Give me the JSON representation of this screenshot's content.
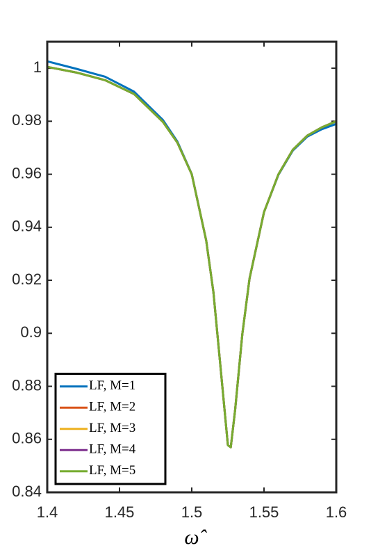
{
  "chart_data": {
    "type": "line",
    "x": [
      1.4,
      1.42,
      1.44,
      1.46,
      1.48,
      1.49,
      1.5,
      1.51,
      1.515,
      1.52,
      1.525,
      1.527,
      1.53,
      1.535,
      1.54,
      1.55,
      1.56,
      1.57,
      1.58,
      1.59,
      1.6
    ],
    "series": [
      {
        "name": "LF, M=1",
        "color": "#0072BD",
        "values": [
          1.0026,
          0.9998,
          0.9968,
          0.9912,
          0.9805,
          0.9724,
          0.9601,
          0.935,
          0.9155,
          0.8867,
          0.8578,
          0.857,
          0.871,
          0.8997,
          0.9207,
          0.9457,
          0.9598,
          0.969,
          0.9742,
          0.977,
          0.979
        ]
      },
      {
        "name": "LF, M=2",
        "color": "#D95319",
        "values": [
          1.0005,
          0.9984,
          0.9955,
          0.9903,
          0.9798,
          0.972,
          0.96,
          0.935,
          0.9155,
          0.8867,
          0.8578,
          0.857,
          0.871,
          0.8997,
          0.9207,
          0.9457,
          0.96,
          0.9693,
          0.9746,
          0.9777,
          0.98
        ]
      },
      {
        "name": "LF, M=3",
        "color": "#EDB120",
        "values": [
          1.0005,
          0.9984,
          0.9955,
          0.9903,
          0.9798,
          0.972,
          0.96,
          0.935,
          0.9155,
          0.8867,
          0.8578,
          0.857,
          0.871,
          0.8997,
          0.9207,
          0.9457,
          0.96,
          0.9693,
          0.9746,
          0.9777,
          0.98
        ]
      },
      {
        "name": "LF, M=4",
        "color": "#7E2F8E",
        "values": [
          1.0005,
          0.9984,
          0.9955,
          0.9903,
          0.9798,
          0.972,
          0.96,
          0.935,
          0.9155,
          0.8867,
          0.8578,
          0.857,
          0.871,
          0.8997,
          0.9207,
          0.9457,
          0.96,
          0.9693,
          0.9746,
          0.9777,
          0.98
        ]
      },
      {
        "name": "LF, M=5",
        "color": "#77AC30",
        "values": [
          1.0005,
          0.9984,
          0.9955,
          0.9903,
          0.9798,
          0.972,
          0.96,
          0.935,
          0.9155,
          0.8867,
          0.8578,
          0.857,
          0.871,
          0.8997,
          0.9207,
          0.9457,
          0.96,
          0.9693,
          0.9746,
          0.9777,
          0.98
        ]
      }
    ],
    "x_label": "ω̂",
    "xlim": [
      1.4,
      1.6
    ],
    "xticks": [
      1.4,
      1.45,
      1.5,
      1.55,
      1.6
    ],
    "ylim": [
      0.84,
      1.01
    ],
    "yticks": [
      0.84,
      0.86,
      0.88,
      0.9,
      0.92,
      0.94,
      0.96,
      0.98,
      1
    ],
    "legend": "lower left"
  }
}
